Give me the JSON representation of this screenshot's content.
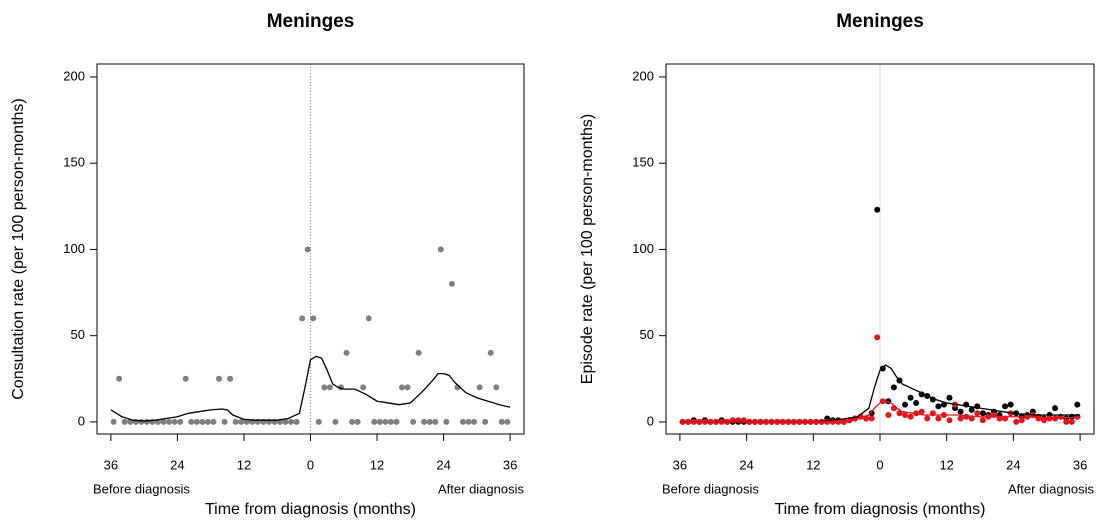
{
  "chart_data": [
    {
      "type": "scatter",
      "title": "Meninges",
      "xlabel": "Time from diagnosis (months)",
      "ylabel": "Consultation rate (per 100 person-months)",
      "annotations": [
        "Before diagnosis",
        "After diagnosis"
      ],
      "xlim": [
        -38.5,
        38.5
      ],
      "ylim": [
        -7,
        207.5
      ],
      "vline": 0,
      "vline_style": "dotted",
      "xticks": [
        {
          "value": -36,
          "label": "36"
        },
        {
          "value": -24,
          "label": "24"
        },
        {
          "value": -12,
          "label": "12"
        },
        0,
        12,
        24,
        36
      ],
      "yticks": [
        0,
        50,
        100,
        150,
        200
      ],
      "x": [
        -35.5,
        -34.5,
        -33.5,
        -32.5,
        -31.5,
        -30.5,
        -29.5,
        -28.5,
        -27.5,
        -26.5,
        -25.5,
        -24.5,
        -23.5,
        -22.5,
        -21.5,
        -20.5,
        -19.5,
        -18.5,
        -17.5,
        -16.5,
        -15.5,
        -14.5,
        -13.5,
        -12.5,
        -11.5,
        -10.5,
        -9.5,
        -8.5,
        -7.5,
        -6.5,
        -5.5,
        -4.5,
        -3.5,
        -2.5,
        -1.5,
        -0.5,
        0.5,
        1.5,
        2.5,
        3.5,
        4.5,
        5.5,
        6.5,
        7.5,
        8.5,
        9.5,
        10.5,
        11.5,
        12.5,
        13.5,
        14.5,
        15.5,
        16.5,
        17.5,
        18.5,
        19.5,
        20.5,
        21.5,
        22.5,
        23.5,
        24.5,
        25.5,
        26.5,
        27.5,
        28.5,
        29.5,
        30.5,
        31.5,
        32.5,
        33.5,
        34.5,
        35.5
      ],
      "series": [
        {
          "mode": "markers",
          "color": "#7f7f7f",
          "values": [
            0,
            25,
            0,
            0,
            0,
            0,
            0,
            0,
            0,
            0,
            0,
            0,
            0,
            25,
            0,
            0,
            0,
            0,
            0,
            25,
            0,
            25,
            0,
            0,
            0,
            0,
            0,
            0,
            0,
            0,
            0,
            0,
            0,
            0,
            60,
            100,
            60,
            0,
            20,
            20,
            0,
            20,
            40,
            0,
            0,
            20,
            60,
            0,
            0,
            0,
            0,
            0,
            20,
            20,
            0,
            40,
            0,
            0,
            0,
            100,
            0,
            80,
            20,
            0,
            0,
            0,
            20,
            0,
            40,
            20,
            0,
            0
          ]
        },
        {
          "mode": "lines",
          "color": "#000000",
          "x": [
            -36,
            -34,
            -32,
            -30,
            -28,
            -26,
            -24,
            -22,
            -20,
            -18,
            -16,
            -15,
            -14,
            -12,
            -10,
            -8,
            -6,
            -4,
            -2,
            -1,
            0,
            1,
            2,
            3,
            4,
            5,
            6,
            8,
            10,
            12,
            14,
            16,
            18,
            20,
            22,
            23,
            24,
            25,
            26,
            28,
            30,
            32,
            34,
            36
          ],
          "values": [
            7,
            3,
            1,
            0.5,
            1,
            2,
            3,
            5,
            6,
            7,
            7.5,
            7,
            4,
            1.5,
            1,
            1,
            1,
            2,
            5,
            20,
            36,
            38,
            37,
            30,
            22,
            20,
            19,
            19,
            16,
            12,
            11,
            10,
            11,
            17,
            24,
            28,
            28,
            27,
            23,
            17,
            14,
            12,
            10,
            8.5
          ]
        }
      ]
    },
    {
      "type": "scatter",
      "title": "Meninges",
      "xlabel": "Time from diagnosis (months)",
      "ylabel": "Episode rate (per 100 person-months)",
      "annotations": [
        "Before diagnosis",
        "After diagnosis"
      ],
      "xlim": [
        -38.5,
        38.5
      ],
      "ylim": [
        -7,
        207.5
      ],
      "vline": 0,
      "vline_style": "solid",
      "xticks": [
        {
          "value": -36,
          "label": "36"
        },
        {
          "value": -24,
          "label": "24"
        },
        {
          "value": -12,
          "label": "12"
        },
        0,
        12,
        24,
        36
      ],
      "yticks": [
        0,
        50,
        100,
        150,
        200
      ],
      "x": [
        -35.5,
        -34.5,
        -33.5,
        -32.5,
        -31.5,
        -30.5,
        -29.5,
        -28.5,
        -27.5,
        -26.5,
        -25.5,
        -24.5,
        -23.5,
        -22.5,
        -21.5,
        -20.5,
        -19.5,
        -18.5,
        -17.5,
        -16.5,
        -15.5,
        -14.5,
        -13.5,
        -12.5,
        -11.5,
        -10.5,
        -9.5,
        -8.5,
        -7.5,
        -6.5,
        -5.5,
        -4.5,
        -3.5,
        -2.5,
        -1.5,
        -0.5,
        0.5,
        1.5,
        2.5,
        3.5,
        4.5,
        5.5,
        6.5,
        7.5,
        8.5,
        9.5,
        10.5,
        11.5,
        12.5,
        13.5,
        14.5,
        15.5,
        16.5,
        17.5,
        18.5,
        19.5,
        20.5,
        21.5,
        22.5,
        23.5,
        24.5,
        25.5,
        26.5,
        27.5,
        28.5,
        29.5,
        30.5,
        31.5,
        32.5,
        33.5,
        34.5,
        35.5
      ],
      "series": [
        {
          "mode": "markers",
          "color": "#000000",
          "values": [
            0,
            0,
            1,
            0,
            1,
            0,
            0,
            1,
            0,
            0,
            0,
            0,
            0,
            0,
            0,
            0,
            0,
            0,
            0,
            0,
            0,
            0,
            0,
            0,
            0,
            0,
            2,
            1,
            1,
            0,
            1,
            2,
            3,
            2,
            5,
            123,
            31,
            12,
            20,
            24,
            10,
            14,
            11,
            16,
            15,
            13,
            9,
            10,
            14,
            8,
            6,
            10,
            7,
            9,
            5,
            4,
            6,
            4,
            9,
            10,
            5,
            3,
            4,
            6,
            3,
            2,
            4,
            8,
            3,
            2,
            3,
            10
          ]
        },
        {
          "mode": "markers",
          "color": "#e8141a",
          "values": [
            0,
            0,
            0,
            0,
            0,
            0,
            0,
            0,
            0,
            1,
            1,
            1,
            0,
            0,
            0,
            0,
            0,
            0,
            0,
            0,
            0,
            0,
            0,
            0,
            0,
            0,
            0,
            0,
            0,
            0,
            1,
            2,
            3,
            2,
            2,
            49,
            12,
            4,
            8,
            5,
            4,
            3,
            5,
            6,
            2,
            5,
            2,
            4,
            1,
            10,
            2,
            3,
            2,
            5,
            1,
            3,
            4,
            2,
            2,
            5,
            0,
            1,
            3,
            4,
            2,
            1,
            2,
            2,
            3,
            0,
            0,
            3
          ]
        },
        {
          "mode": "lines",
          "color": "#000000",
          "x": [
            -36,
            -12,
            -8,
            -6,
            -4,
            -2,
            -1,
            0,
            1,
            2,
            3,
            4,
            6,
            8,
            10,
            12,
            14,
            16,
            18,
            20,
            22,
            24,
            26,
            28,
            30,
            32,
            34,
            36
          ],
          "values": [
            0,
            0,
            1,
            2,
            3,
            8,
            20,
            30,
            33,
            31,
            26,
            22,
            19,
            16,
            13,
            11,
            10,
            9,
            8,
            7,
            6,
            5,
            4.5,
            4,
            4,
            4,
            4,
            4
          ]
        },
        {
          "mode": "lines",
          "color": "#e8141a",
          "x": [
            -36,
            -10,
            -6,
            -4,
            -2,
            -1,
            0,
            1,
            2,
            3,
            4,
            6,
            8,
            10,
            14,
            18,
            22,
            26,
            30,
            34,
            36
          ],
          "values": [
            0,
            0,
            1,
            2,
            4,
            8,
            11,
            12,
            11,
            8,
            6,
            5,
            4,
            4,
            4,
            3,
            3,
            3,
            2.5,
            2.5,
            2.5
          ]
        }
      ]
    }
  ]
}
